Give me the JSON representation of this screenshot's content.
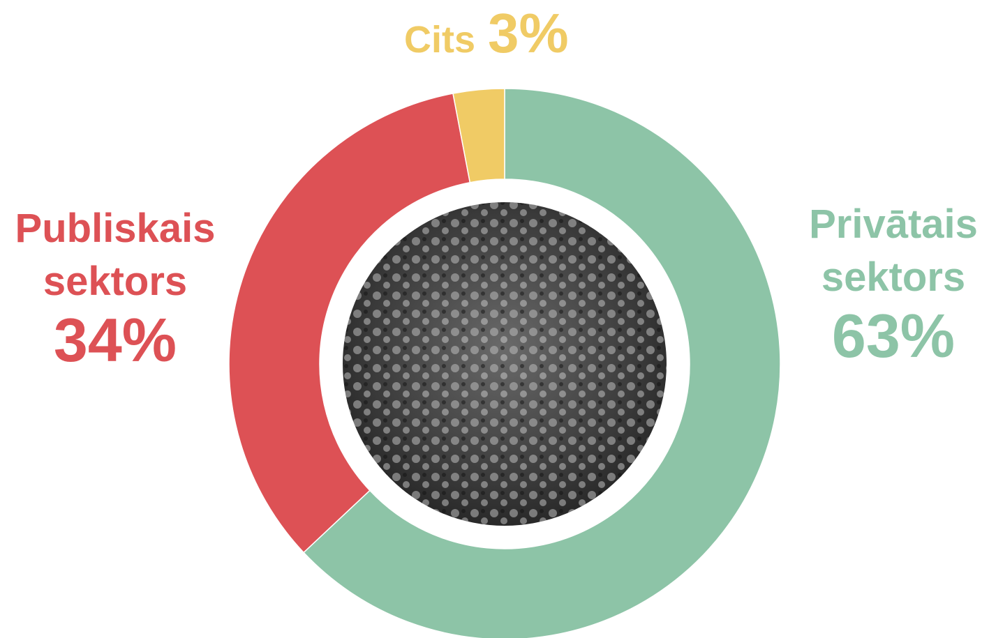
{
  "chart_data": {
    "type": "pie",
    "donut": true,
    "categories": [
      "Privātais sektors",
      "Publiskais sektors",
      "Cits"
    ],
    "values": [
      63,
      34,
      3
    ],
    "value_labels": [
      "63%",
      "34%",
      "3%"
    ],
    "colors": [
      "#8dc4a7",
      "#dd5155",
      "#f0cb65"
    ]
  }
}
